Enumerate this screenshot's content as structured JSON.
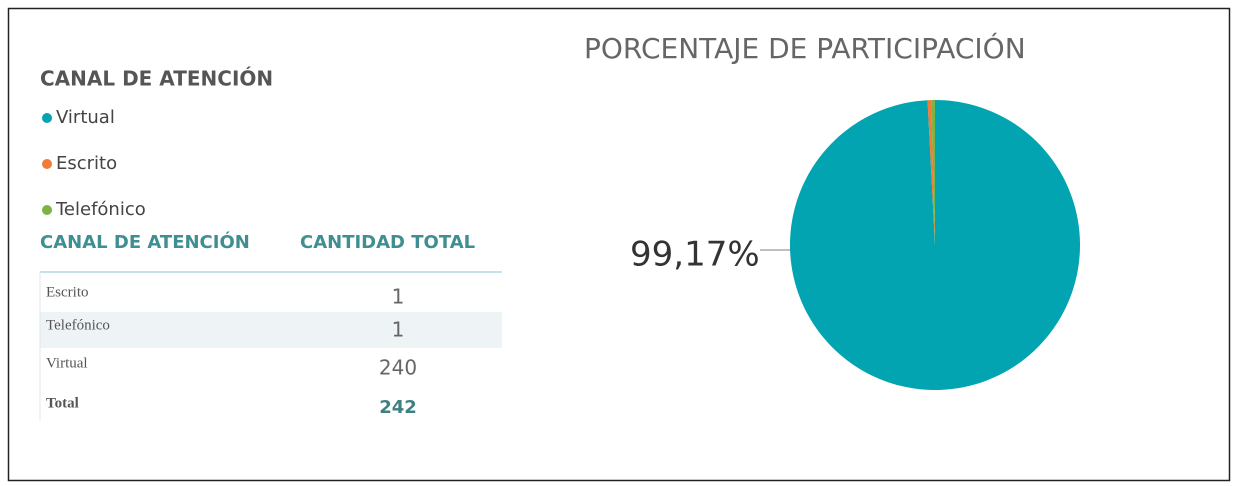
{
  "chart_data": {
    "type": "pie",
    "title": "PORCENTAJE DE PARTICIPACIÓN",
    "legend_title": "CANAL DE ATENCIÓN",
    "categories": [
      "Virtual",
      "Escrito",
      "Telefónico"
    ],
    "values": [
      99.17,
      0.41,
      0.41
    ],
    "value_labels": [
      "99,17%",
      null,
      null
    ],
    "colors": [
      "#01a4b0",
      "#f07b3a",
      "#7cb342"
    ]
  },
  "table": {
    "headers": [
      "CANAL DE ATENCIÓN",
      "CANTIDAD TOTAL"
    ],
    "rows": [
      [
        "Escrito",
        1
      ],
      [
        "Telefónico",
        1
      ],
      [
        "Virtual",
        240
      ]
    ],
    "total": [
      "Total",
      242
    ]
  }
}
